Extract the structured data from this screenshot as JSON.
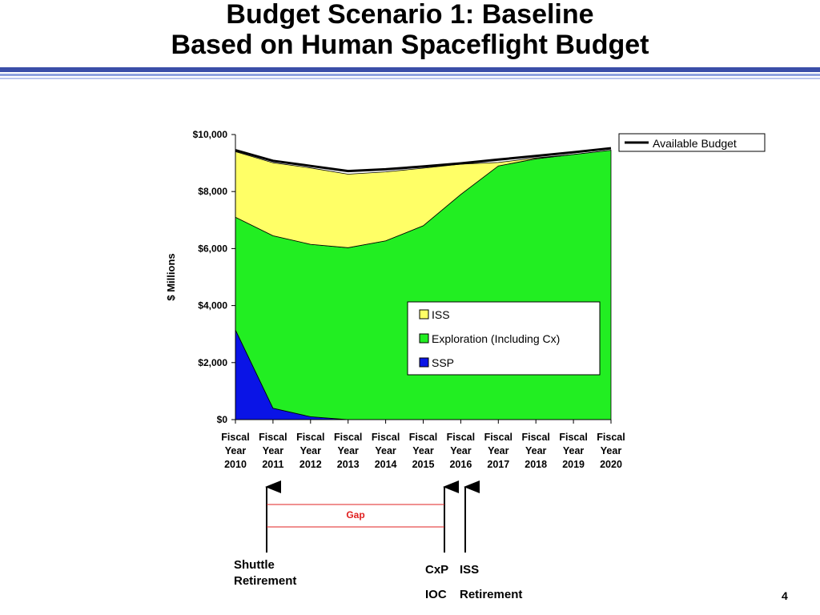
{
  "slide": {
    "title_line1": "Budget Scenario 1: Baseline",
    "title_line2": "Based on Human Spaceflight Budget",
    "page_number": "4"
  },
  "colors": {
    "iss": "#ffff66",
    "exploration": "#22ee22",
    "ssp": "#0a14e6",
    "available_budget": "#000000",
    "gap": "#e02020",
    "rule_dark": "#3a4ea8",
    "rule_light": "#8fa3e0"
  },
  "chart_data": {
    "type": "area",
    "ylabel": "$ Millions",
    "ylim": [
      0,
      10000
    ],
    "y_ticks": [
      "$0",
      "$2,000",
      "$4,000",
      "$6,000",
      "$8,000",
      "$10,000"
    ],
    "categories": [
      [
        "Fiscal",
        "Year",
        "2010"
      ],
      [
        "Fiscal",
        "Year",
        "2011"
      ],
      [
        "Fiscal",
        "Year",
        "2012"
      ],
      [
        "Fiscal",
        "Year",
        "2013"
      ],
      [
        "Fiscal",
        "Year",
        "2014"
      ],
      [
        "Fiscal",
        "Year",
        "2015"
      ],
      [
        "Fiscal",
        "Year",
        "2016"
      ],
      [
        "Fiscal",
        "Year",
        "2017"
      ],
      [
        "Fiscal",
        "Year",
        "2018"
      ],
      [
        "Fiscal",
        "Year",
        "2019"
      ],
      [
        "Fiscal",
        "Year",
        "2020"
      ]
    ],
    "series": [
      {
        "name": "SSP",
        "color_key": "ssp",
        "values": [
          3150,
          400,
          100,
          0,
          0,
          0,
          0,
          0,
          0,
          0,
          0
        ]
      },
      {
        "name": "Exploration (Including Cx)",
        "color_key": "exploration",
        "values": [
          3950,
          6050,
          6050,
          6030,
          6270,
          6800,
          7900,
          8900,
          9150,
          9300,
          9450
        ]
      },
      {
        "name": "ISS",
        "color_key": "iss",
        "values": [
          2300,
          2560,
          2680,
          2580,
          2420,
          2020,
          1060,
          120,
          30,
          0,
          0
        ]
      }
    ],
    "line_series": {
      "name": "Available Budget",
      "values": [
        9450,
        9080,
        8900,
        8720,
        8780,
        8880,
        8990,
        9120,
        9250,
        9380,
        9520
      ]
    },
    "legend_stack": [
      "ISS",
      "Exploration (Including Cx)",
      "SSP"
    ],
    "legend_line": "Available Budget"
  },
  "annotations": {
    "gap_label": "Gap",
    "shuttle": [
      "Shuttle",
      "Retirement"
    ],
    "cxp": [
      "CxP",
      "IOC"
    ],
    "iss": [
      "ISS",
      "Retirement"
    ]
  }
}
